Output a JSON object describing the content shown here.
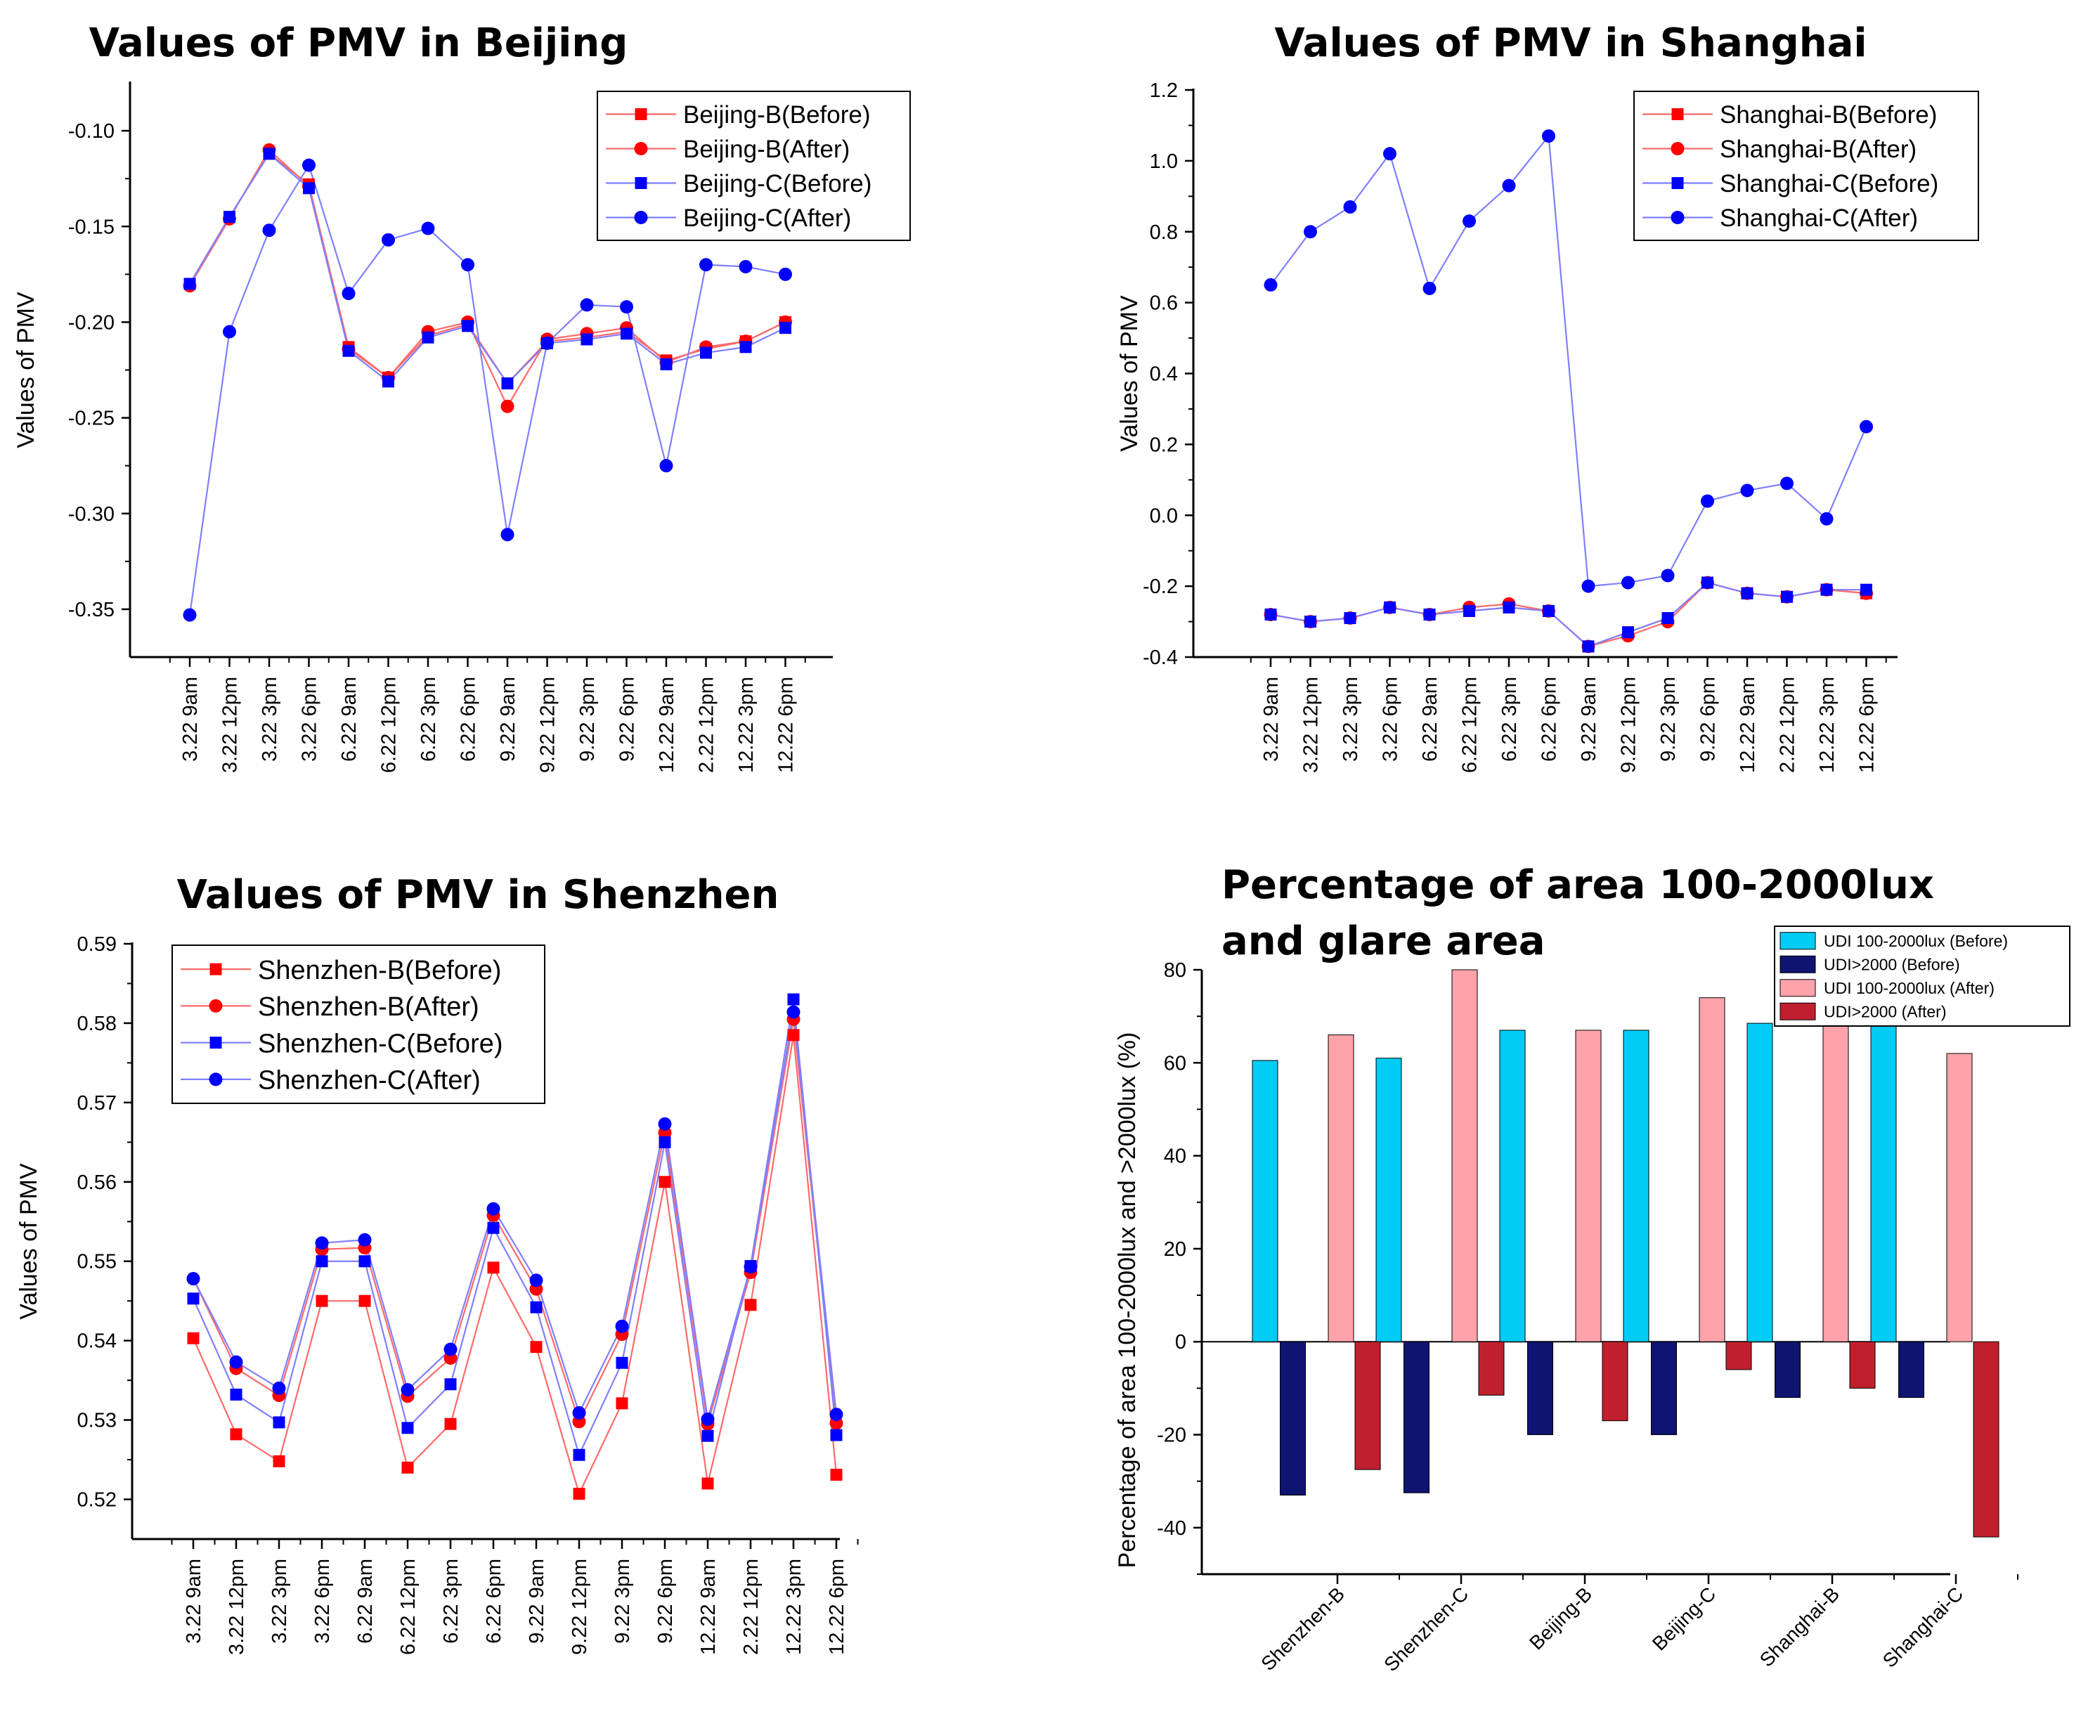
{
  "figure": {
    "colors": {
      "red": "#ff0000",
      "blue": "#0000ff",
      "blue_line": "#7f7fff",
      "red_line": "#ff6a6a",
      "cyan": "#00ccf5",
      "navy": "#0f1470",
      "pink": "#ffa3aa",
      "darkred": "#c0202e"
    }
  },
  "chart_data": [
    {
      "id": "beijing",
      "type": "line",
      "title": "Values of PMV in Beijing",
      "xlabel": "",
      "ylabel": "Values of PMV",
      "categories": [
        "3.22 9am",
        "3.22 12pm",
        "3.22 3pm",
        "3.22 6pm",
        "6.22 9am",
        "6.22 12pm",
        "6.22 3pm",
        "6.22 6pm",
        "9.22 9am",
        "9.22 12pm",
        "9.22 3pm",
        "9.22 6pm",
        "12.22 9am",
        "2.22 12pm",
        "12.22 3pm",
        "12.22 6pm"
      ],
      "ylim": [
        -0.375,
        -0.075
      ],
      "yticks": [
        -0.35,
        -0.3,
        -0.25,
        -0.2,
        -0.15,
        -0.1
      ],
      "ytick_labels": [
        "-0.35",
        "-0.30",
        "-0.25",
        "-0.20",
        "-0.15",
        "-0.10"
      ],
      "legend_position": "top-right",
      "series": [
        {
          "name": "Beijing-B(Before)",
          "color": "red",
          "marker": "square",
          "values": [
            -0.18,
            -0.145,
            -0.112,
            -0.128,
            -0.213,
            -0.229,
            -0.207,
            -0.201,
            -0.232,
            -0.21,
            -0.208,
            -0.205,
            -0.22,
            -0.214,
            -0.21,
            -0.2
          ]
        },
        {
          "name": "Beijing-B(After)",
          "color": "red",
          "marker": "circle",
          "values": [
            -0.181,
            -0.146,
            -0.11,
            -0.129,
            -0.214,
            -0.229,
            -0.205,
            -0.2,
            -0.244,
            -0.209,
            -0.206,
            -0.203,
            -0.221,
            -0.213,
            -0.21,
            -0.2
          ]
        },
        {
          "name": "Beijing-C(Before)",
          "color": "blue",
          "marker": "square",
          "values": [
            -0.18,
            -0.145,
            -0.112,
            -0.13,
            -0.215,
            -0.231,
            -0.208,
            -0.202,
            -0.232,
            -0.211,
            -0.209,
            -0.206,
            -0.222,
            -0.216,
            -0.213,
            -0.203
          ]
        },
        {
          "name": "Beijing-C(After)",
          "color": "blue",
          "marker": "circle",
          "values": [
            -0.353,
            -0.205,
            -0.152,
            -0.118,
            -0.185,
            -0.157,
            -0.151,
            -0.17,
            -0.311,
            -0.211,
            -0.191,
            -0.192,
            -0.275,
            -0.17,
            -0.171,
            -0.175
          ]
        }
      ]
    },
    {
      "id": "shanghai",
      "type": "line",
      "title": "Values of PMV in Shanghai",
      "xlabel": "",
      "ylabel": "Values of PMV",
      "categories": [
        "3.22 9am",
        "3.22 12pm",
        "3.22 3pm",
        "3.22 6pm",
        "6.22 9am",
        "6.22 12pm",
        "6.22 3pm",
        "6.22 6pm",
        "9.22 9am",
        "9.22 12pm",
        "9.22 3pm",
        "9.22 6pm",
        "12.22 9am",
        "2.22 12pm",
        "12.22 3pm",
        "12.22 6pm"
      ],
      "ylim": [
        -0.4,
        1.2
      ],
      "yticks": [
        -0.4,
        -0.2,
        0.0,
        0.2,
        0.4,
        0.6,
        0.8,
        1.0,
        1.2
      ],
      "ytick_labels": [
        "-0.4",
        "-0.2",
        "0.0",
        "0.2",
        "0.4",
        "0.6",
        "0.8",
        "1.0",
        "1.2"
      ],
      "legend_position": "top-right",
      "series": [
        {
          "name": "Shanghai-B(Before)",
          "color": "red",
          "marker": "square",
          "values": [
            -0.28,
            -0.3,
            -0.29,
            -0.26,
            -0.28,
            -0.27,
            -0.26,
            -0.27,
            -0.37,
            -0.33,
            -0.29,
            -0.19,
            -0.22,
            -0.23,
            -0.21,
            -0.22
          ]
        },
        {
          "name": "Shanghai-B(After)",
          "color": "red",
          "marker": "circle",
          "values": [
            -0.28,
            -0.3,
            -0.29,
            -0.26,
            -0.28,
            -0.26,
            -0.25,
            -0.27,
            -0.37,
            -0.34,
            -0.3,
            -0.19,
            -0.22,
            -0.23,
            -0.21,
            -0.22
          ]
        },
        {
          "name": "Shanghai-C(Before)",
          "color": "blue",
          "marker": "square",
          "values": [
            -0.28,
            -0.3,
            -0.29,
            -0.26,
            -0.28,
            -0.27,
            -0.26,
            -0.27,
            -0.37,
            -0.33,
            -0.29,
            -0.19,
            -0.22,
            -0.23,
            -0.21,
            -0.21
          ]
        },
        {
          "name": "Shanghai-C(After)",
          "color": "blue",
          "marker": "circle",
          "values": [
            0.65,
            0.8,
            0.87,
            1.02,
            0.64,
            0.83,
            0.93,
            1.07,
            -0.2,
            -0.19,
            -0.17,
            0.04,
            0.07,
            0.09,
            -0.01,
            0.25
          ]
        }
      ]
    },
    {
      "id": "shenzhen",
      "type": "line",
      "title": "Values of PMV in Shenzhen",
      "xlabel": "",
      "ylabel": "Values of PMV",
      "categories": [
        "3.22 9am",
        "3.22 12pm",
        "3.22 3pm",
        "3.22 6pm",
        "6.22 9am",
        "6.22 12pm",
        "6.22 3pm",
        "6.22 6pm",
        "9.22 9am",
        "9.22 12pm",
        "9.22 3pm",
        "9.22 6pm",
        "12.22 9am",
        "2.22 12pm",
        "12.22 3pm",
        "12.22 6pm"
      ],
      "ylim": [
        0.515,
        0.59
      ],
      "yticks": [
        0.52,
        0.53,
        0.54,
        0.55,
        0.56,
        0.57,
        0.58,
        0.59
      ],
      "ytick_labels": [
        "0.52",
        "0.53",
        "0.54",
        "0.55",
        "0.56",
        "0.57",
        "0.58",
        "0.59"
      ],
      "legend_position": "top-left",
      "series": [
        {
          "name": "Shenzhen-B(Before)",
          "color": "red",
          "marker": "square",
          "values": [
            0.5403,
            0.5282,
            0.5248,
            0.545,
            0.545,
            0.524,
            0.5295,
            0.5492,
            0.5392,
            0.5207,
            0.5321,
            0.56,
            0.522,
            0.5445,
            0.5785,
            0.5231
          ]
        },
        {
          "name": "Shenzhen-B(After)",
          "color": "red",
          "marker": "circle",
          "values": [
            0.5478,
            0.5365,
            0.5331,
            0.5515,
            0.5517,
            0.533,
            0.5378,
            0.5558,
            0.5465,
            0.5298,
            0.5408,
            0.5662,
            0.5295,
            0.5486,
            0.5805,
            0.5296
          ]
        },
        {
          "name": "Shenzhen-C(Before)",
          "color": "blue",
          "marker": "square",
          "values": [
            0.5453,
            0.5332,
            0.5297,
            0.55,
            0.55,
            0.529,
            0.5345,
            0.5542,
            0.5442,
            0.5256,
            0.5372,
            0.565,
            0.528,
            0.5494,
            0.583,
            0.5281
          ]
        },
        {
          "name": "Shenzhen-C(After)",
          "color": "blue",
          "marker": "circle",
          "values": [
            0.5478,
            0.5373,
            0.534,
            0.5523,
            0.5527,
            0.5338,
            0.5389,
            0.5566,
            0.5476,
            0.5309,
            0.5418,
            0.5673,
            0.5301,
            0.5493,
            0.5814,
            0.5307
          ]
        }
      ]
    },
    {
      "id": "udi",
      "type": "bar",
      "title": "Percentage of area 100-2000lux",
      "title_line2": "and glare area",
      "xlabel": "",
      "ylabel": "Percentage of area 100-2000lux and >2000lux (%)",
      "categories": [
        "Shenzhen-B",
        "Shenzhen-C",
        "Beijing-B",
        "Beijing-C",
        "Shanghai-B",
        "Shanghai-C"
      ],
      "ylim": [
        -50,
        80
      ],
      "yticks": [
        -40,
        -20,
        0,
        20,
        40,
        60,
        80
      ],
      "ytick_labels": [
        "-40",
        "-20",
        "0",
        "20",
        "40",
        "60",
        "80"
      ],
      "legend_position": "top-right",
      "series": [
        {
          "name": "UDI 100-2000lux (Before)",
          "color": "cyan",
          "values": [
            60.5,
            61,
            67,
            67,
            68.5,
            68.5
          ]
        },
        {
          "name": "UDI>2000 (Before)",
          "color": "navy",
          "values": [
            -33,
            -32.5,
            -20,
            -20,
            -12,
            -12
          ]
        },
        {
          "name": "UDI 100-2000lux (After)",
          "color": "pink",
          "values": [
            66,
            80,
            67,
            74,
            68,
            62
          ]
        },
        {
          "name": "UDI>2000 (After)",
          "color": "darkred",
          "values": [
            -27.5,
            -11.5,
            -17,
            -6,
            -10,
            -42
          ]
        }
      ]
    }
  ]
}
